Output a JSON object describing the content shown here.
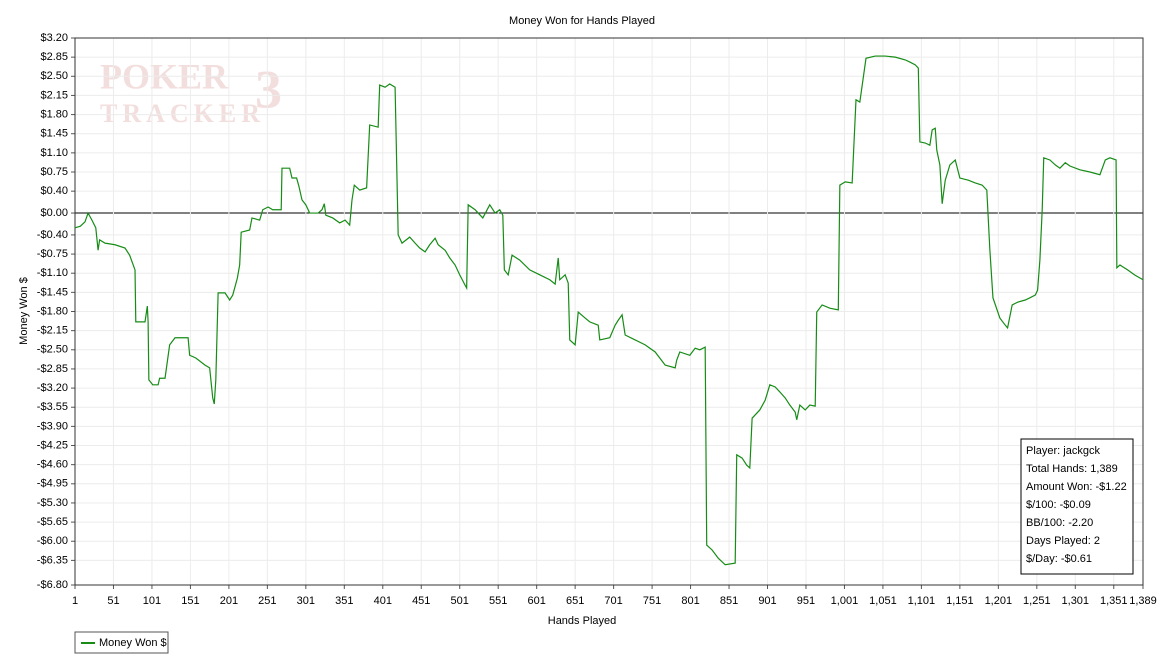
{
  "chart_data": {
    "type": "line",
    "title": "Money Won for Hands Played",
    "x_label": "Hands Played",
    "y_label": "Money Won $",
    "watermark": [
      "POKER",
      "TRACKER",
      "3"
    ],
    "x": [
      1,
      8,
      14,
      18,
      23,
      28,
      31,
      33,
      40,
      53,
      66,
      72,
      79,
      80,
      92,
      95,
      96,
      97,
      102,
      109,
      111,
      118,
      124,
      131,
      148,
      150,
      158,
      170,
      176,
      180,
      182,
      184,
      187,
      196,
      202,
      206,
      212,
      215,
      217,
      228,
      231,
      241,
      245,
      252,
      258,
      269,
      270,
      280,
      283,
      289,
      292,
      296,
      301,
      306,
      317,
      322,
      325,
      327,
      336,
      345,
      352,
      358,
      361,
      364,
      371,
      380,
      384,
      395,
      397,
      404,
      410,
      417,
      421,
      426,
      436,
      443,
      449,
      456,
      462,
      469,
      473,
      482,
      488,
      495,
      501,
      508,
      510,
      512,
      521,
      525,
      531,
      540,
      547,
      553,
      557,
      559,
      564,
      569,
      579,
      592,
      605,
      618,
      625,
      629,
      631,
      638,
      642,
      644,
      651,
      655,
      664,
      670,
      681,
      683,
      696,
      703,
      707,
      712,
      716,
      729,
      742,
      755,
      768,
      781,
      783,
      787,
      800,
      807,
      813,
      820,
      822,
      829,
      837,
      846,
      859,
      861,
      868,
      874,
      878,
      881,
      891,
      898,
      904,
      911,
      917,
      924,
      930,
      937,
      939,
      943,
      950,
      956,
      963,
      965,
      972,
      982,
      993,
      995,
      1002,
      1011,
      1016,
      1021,
      1029,
      1041,
      1054,
      1067,
      1080,
      1086,
      1093,
      1097,
      1099,
      1106,
      1112,
      1115,
      1119,
      1121,
      1125,
      1128,
      1132,
      1138,
      1145,
      1151,
      1162,
      1171,
      1180,
      1186,
      1190,
      1194,
      1203,
      1210,
      1213,
      1219,
      1226,
      1236,
      1242,
      1249,
      1252,
      1255,
      1258,
      1260,
      1268,
      1275,
      1281,
      1288,
      1294,
      1307,
      1320,
      1333,
      1340,
      1346,
      1354,
      1355,
      1359,
      1369,
      1378,
      1389
    ],
    "series": [
      {
        "name": "Money Won $",
        "color": "#168c16",
        "values": [
          -0.27,
          -0.24,
          -0.16,
          0.0,
          -0.13,
          -0.27,
          -0.68,
          -0.49,
          -0.55,
          -0.58,
          -0.64,
          -0.77,
          -1.04,
          -1.99,
          -1.99,
          -1.7,
          -1.99,
          -3.05,
          -3.14,
          -3.14,
          -3.02,
          -3.02,
          -2.41,
          -2.28,
          -2.28,
          -2.6,
          -2.65,
          -2.78,
          -2.83,
          -3.38,
          -3.49,
          -3.05,
          -1.46,
          -1.46,
          -1.59,
          -1.5,
          -1.19,
          -0.95,
          -0.35,
          -0.31,
          -0.09,
          -0.13,
          0.06,
          0.11,
          0.06,
          0.06,
          0.82,
          0.82,
          0.64,
          0.64,
          0.49,
          0.24,
          0.15,
          0.0,
          0.0,
          0.06,
          0.17,
          -0.04,
          -0.09,
          -0.18,
          -0.13,
          -0.22,
          0.24,
          0.51,
          0.42,
          0.46,
          1.61,
          1.57,
          2.34,
          2.3,
          2.36,
          2.3,
          -0.4,
          -0.55,
          -0.44,
          -0.55,
          -0.64,
          -0.71,
          -0.58,
          -0.46,
          -0.58,
          -0.68,
          -0.82,
          -0.95,
          -1.13,
          -1.32,
          -1.37,
          0.15,
          0.06,
          0.0,
          -0.09,
          0.15,
          0.0,
          0.06,
          -0.04,
          -1.04,
          -1.13,
          -0.77,
          -0.86,
          -1.04,
          -1.13,
          -1.22,
          -1.3,
          -0.82,
          -1.22,
          -1.13,
          -1.28,
          -2.32,
          -2.41,
          -1.81,
          -1.92,
          -1.99,
          -2.05,
          -2.32,
          -2.28,
          -2.05,
          -1.96,
          -1.86,
          -2.23,
          -2.32,
          -2.41,
          -2.54,
          -2.78,
          -2.83,
          -2.69,
          -2.54,
          -2.6,
          -2.47,
          -2.5,
          -2.45,
          -6.07,
          -6.16,
          -6.31,
          -6.43,
          -6.4,
          -4.42,
          -4.48,
          -4.61,
          -4.66,
          -3.75,
          -3.6,
          -3.42,
          -3.14,
          -3.18,
          -3.27,
          -3.38,
          -3.51,
          -3.64,
          -3.78,
          -3.51,
          -3.6,
          -3.51,
          -3.53,
          -1.81,
          -1.68,
          -1.74,
          -1.77,
          0.51,
          0.57,
          0.55,
          2.07,
          2.03,
          2.83,
          2.87,
          2.87,
          2.85,
          2.8,
          2.76,
          2.71,
          2.65,
          1.3,
          1.28,
          1.24,
          1.52,
          1.55,
          1.15,
          0.88,
          0.17,
          0.6,
          0.88,
          0.97,
          0.64,
          0.6,
          0.55,
          0.51,
          0.42,
          -0.68,
          -1.55,
          -1.92,
          -2.05,
          -2.1,
          -1.68,
          -1.63,
          -1.59,
          -1.55,
          -1.5,
          -1.41,
          -0.86,
          0.06,
          1.01,
          0.97,
          0.88,
          0.82,
          0.92,
          0.86,
          0.79,
          0.75,
          0.7,
          0.97,
          1.01,
          0.97,
          -1.0,
          -0.95,
          -1.04,
          -1.13,
          -1.22
        ]
      }
    ],
    "xlim": [
      1,
      1389
    ],
    "ylim": [
      -6.8,
      3.2
    ],
    "xticks": [
      1,
      51,
      101,
      151,
      201,
      251,
      301,
      351,
      401,
      451,
      501,
      551,
      601,
      651,
      701,
      751,
      801,
      851,
      901,
      951,
      {
        "value": 1001,
        "label": "1,001"
      },
      {
        "value": 1051,
        "label": "1,051"
      },
      {
        "value": 1101,
        "label": "1,101"
      },
      {
        "value": 1151,
        "label": "1,151"
      },
      {
        "value": 1201,
        "label": "1,201"
      },
      {
        "value": 1251,
        "label": "1,251"
      },
      {
        "value": 1301,
        "label": "1,301"
      },
      {
        "value": 1351,
        "label": "1,351"
      },
      {
        "value": 1389,
        "label": "1,389"
      }
    ],
    "yticks": [
      {
        "value": 3.2,
        "label": "$3.20"
      },
      {
        "value": 2.85,
        "label": "$2.85"
      },
      {
        "value": 2.5,
        "label": "$2.50"
      },
      {
        "value": 2.15,
        "label": "$2.15"
      },
      {
        "value": 1.8,
        "label": "$1.80"
      },
      {
        "value": 1.45,
        "label": "$1.45"
      },
      {
        "value": 1.1,
        "label": "$1.10"
      },
      {
        "value": 0.75,
        "label": "$0.75"
      },
      {
        "value": 0.4,
        "label": "$0.40"
      },
      {
        "value": 0,
        "label": "$0.00"
      },
      {
        "value": -0.4,
        "label": "-$0.40"
      },
      {
        "value": -0.75,
        "label": "-$0.75"
      },
      {
        "value": -1.1,
        "label": "-$1.10"
      },
      {
        "value": -1.45,
        "label": "-$1.45"
      },
      {
        "value": -1.8,
        "label": "-$1.80"
      },
      {
        "value": -2.15,
        "label": "-$2.15"
      },
      {
        "value": -2.5,
        "label": "-$2.50"
      },
      {
        "value": -2.85,
        "label": "-$2.85"
      },
      {
        "value": -3.2,
        "label": "-$3.20"
      },
      {
        "value": -3.55,
        "label": "-$3.55"
      },
      {
        "value": -3.9,
        "label": "-$3.90"
      },
      {
        "value": -4.25,
        "label": "-$4.25"
      },
      {
        "value": -4.6,
        "label": "-$4.60"
      },
      {
        "value": -4.95,
        "label": "-$4.95"
      },
      {
        "value": -5.3,
        "label": "-$5.30"
      },
      {
        "value": -5.65,
        "label": "-$5.65"
      },
      {
        "value": -6.0,
        "label": "-$6.00"
      },
      {
        "value": -6.35,
        "label": "-$6.35"
      },
      {
        "value": -6.8,
        "label": "-$6.80"
      }
    ],
    "grid": true,
    "legend": "bottom-left",
    "stats_box": [
      "Player: jackgck",
      "Total Hands: 1,389",
      "Amount Won: -$1.22",
      "$/100: -$0.09",
      "BB/100: -2.20",
      "Days Played: 2",
      "$/Day: -$0.61"
    ]
  }
}
